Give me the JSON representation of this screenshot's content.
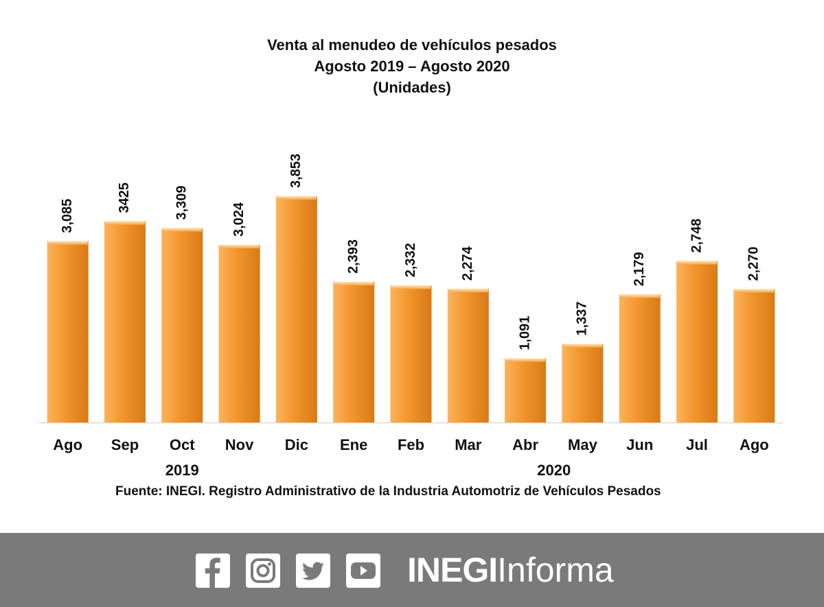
{
  "chart_data": {
    "type": "bar",
    "title": "Venta al menudeo de vehículos pesados",
    "subtitle": "Agosto 2019 – Agosto 2020",
    "unit_label": "(Unidades)",
    "categories": [
      "Ago",
      "Sep",
      "Oct",
      "Nov",
      "Dic",
      "Ene",
      "Feb",
      "Mar",
      "Abr",
      "May",
      "Jun",
      "Jul",
      "Ago"
    ],
    "values": [
      3085,
      3425,
      3309,
      3024,
      3853,
      2393,
      2332,
      2274,
      1091,
      1337,
      2179,
      2748,
      2270
    ],
    "value_labels": [
      "3,085",
      "3425",
      "3,309",
      "3,024",
      "3,853",
      "2,393",
      "2,332",
      "2,274",
      "1,091",
      "1,337",
      "2,179",
      "2,748",
      "2,270"
    ],
    "year_groups": [
      {
        "label": "2019",
        "start": 0,
        "end": 4
      },
      {
        "label": "2020",
        "start": 5,
        "end": 12
      }
    ],
    "ylim": [
      0,
      3853
    ],
    "grid": false,
    "bar_color": "#f2952d",
    "bar_color_light": "#fbb35a",
    "bar_color_dark": "#d97a16",
    "source": "Fuente: INEGI. Registro Administrativo de la Industria Automotriz de Vehículos Pesados"
  },
  "footer": {
    "icons": [
      "facebook-icon",
      "instagram-icon",
      "twitter-icon",
      "youtube-icon"
    ],
    "brand_bold": "INEGI",
    "brand_light": "Informa",
    "background": "#7a7a7a"
  }
}
